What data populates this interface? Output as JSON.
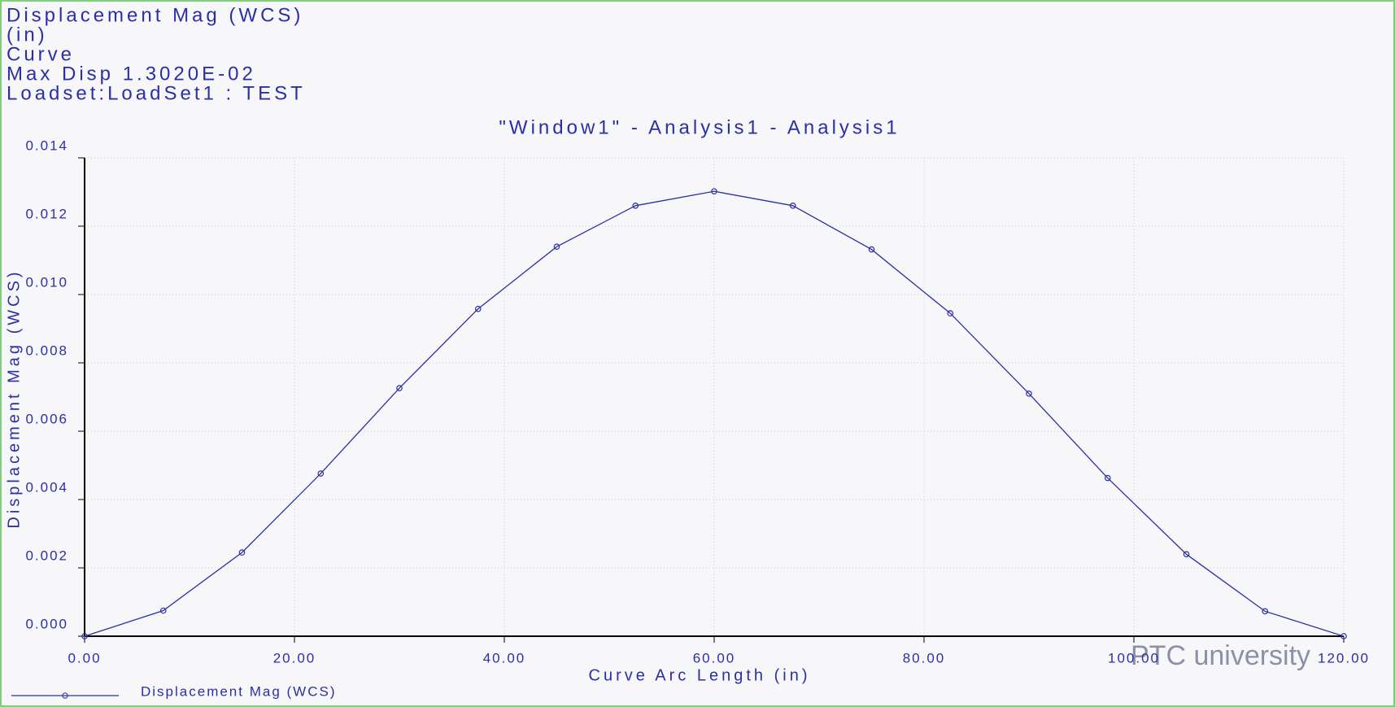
{
  "header": {
    "lines": [
      "Displacement Mag (WCS)",
      "(in)",
      "Curve",
      "Max Disp  1.3020E-02",
      "Loadset:LoadSet1 :  TEST"
    ]
  },
  "watermark": "PTC university",
  "chart_data": {
    "type": "line",
    "title": "\"Window1\" - Analysis1 - Analysis1",
    "x_label": "Curve Arc Length (in)",
    "y_label": "Displacement Mag (WCS)",
    "x": [
      0,
      7.5,
      15,
      22.5,
      30,
      37.5,
      45,
      52.5,
      60,
      67.5,
      75,
      82.5,
      90,
      97.5,
      105,
      112.5,
      120
    ],
    "series": [
      {
        "name": "Displacement Mag (WCS)",
        "color": "#2b2fa6",
        "values": [
          0,
          0.00075,
          0.00245,
          0.00476,
          0.00726,
          0.00958,
          0.0114,
          0.0126,
          0.01302,
          0.0126,
          0.01132,
          0.00945,
          0.0071,
          0.00463,
          0.0024,
          0.00073,
          0
        ]
      }
    ],
    "xlim": [
      0,
      120
    ],
    "ylim": [
      0,
      0.014
    ],
    "xticks": [
      {
        "value": 0,
        "label": "0.00"
      },
      {
        "value": 20,
        "label": "20.00"
      },
      {
        "value": 40,
        "label": "40.00"
      },
      {
        "value": 60,
        "label": "60.00"
      },
      {
        "value": 80,
        "label": "80.00"
      },
      {
        "value": 100,
        "label": "100.00"
      },
      {
        "value": 120,
        "label": "120.00"
      }
    ],
    "yticks": [
      {
        "value": 0,
        "label": "0.000"
      },
      {
        "value": 0.002,
        "label": "0.002"
      },
      {
        "value": 0.004,
        "label": "0.004"
      },
      {
        "value": 0.006,
        "label": "0.006"
      },
      {
        "value": 0.008,
        "label": "0.008"
      },
      {
        "value": 0.01,
        "label": "0.010"
      },
      {
        "value": 0.012,
        "label": "0.012"
      },
      {
        "value": 0.014,
        "label": "0.014"
      }
    ],
    "grid": true
  }
}
